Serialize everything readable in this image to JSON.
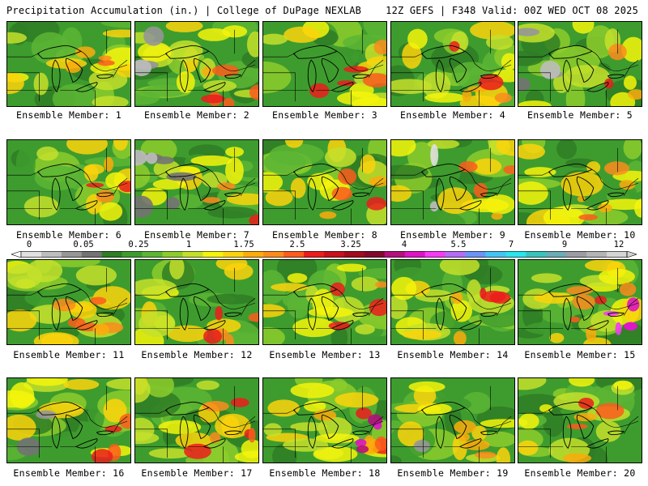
{
  "header": {
    "title": "Precipitation Accumulation (in.) | College of DuPage NEXLAB",
    "run_info": "12Z GEFS | F348 Valid: 00Z WED OCT 08 2025"
  },
  "colorbar": {
    "tick_labels": [
      "0",
      "0.05",
      "0.25",
      "1",
      "1.75",
      "2.5",
      "3.25",
      "4",
      "5.5",
      "7",
      "9",
      "12"
    ],
    "colors": [
      "#e0e0e0",
      "#bdbdbd",
      "#969696",
      "#737373",
      "#2f7d24",
      "#3e9c2e",
      "#5cb534",
      "#8ccc2c",
      "#c4e02c",
      "#f4f40c",
      "#fcd40c",
      "#fcac0c",
      "#fc8c1c",
      "#fc5c1c",
      "#ec1c1c",
      "#c8101c",
      "#a00c1c",
      "#84082c",
      "#b4107c",
      "#dc14c4",
      "#f43cf4",
      "#b46cf4",
      "#6c94f4",
      "#44c4f4",
      "#2ce4ec",
      "#38c4bc",
      "#6cacb4",
      "#9c9ca4",
      "#b4b4b4",
      "#d4d4d4"
    ]
  },
  "members": [
    {
      "label": "Ensemble Member: 1",
      "hot": 0.45,
      "gray": 0.0,
      "magenta": 0.0
    },
    {
      "label": "Ensemble Member: 2",
      "hot": 0.7,
      "gray": 0.25,
      "magenta": 0.0
    },
    {
      "label": "Ensemble Member: 3",
      "hot": 0.6,
      "gray": 0.0,
      "magenta": 0.0
    },
    {
      "label": "Ensemble Member: 4",
      "hot": 0.55,
      "gray": 0.0,
      "magenta": 0.0
    },
    {
      "label": "Ensemble Member: 5",
      "hot": 0.3,
      "gray": 0.35,
      "magenta": 0.0
    },
    {
      "label": "Ensemble Member: 6",
      "hot": 0.4,
      "gray": 0.0,
      "magenta": 0.0
    },
    {
      "label": "Ensemble Member: 7",
      "hot": 0.35,
      "gray": 0.6,
      "magenta": 0.0
    },
    {
      "label": "Ensemble Member: 8",
      "hot": 0.5,
      "gray": 0.0,
      "magenta": 0.0
    },
    {
      "label": "Ensemble Member: 9",
      "hot": 0.45,
      "gray": 0.15,
      "magenta": 0.0
    },
    {
      "label": "Ensemble Member: 10",
      "hot": 0.5,
      "gray": 0.0,
      "magenta": 0.0
    },
    {
      "label": "Ensemble Member: 11",
      "hot": 0.65,
      "gray": 0.0,
      "magenta": 0.0
    },
    {
      "label": "Ensemble Member: 12",
      "hot": 0.5,
      "gray": 0.0,
      "magenta": 0.0
    },
    {
      "label": "Ensemble Member: 13",
      "hot": 0.45,
      "gray": 0.0,
      "magenta": 0.0
    },
    {
      "label": "Ensemble Member: 14",
      "hot": 0.6,
      "gray": 0.0,
      "magenta": 0.0
    },
    {
      "label": "Ensemble Member: 15",
      "hot": 0.7,
      "gray": 0.0,
      "magenta": 0.6
    },
    {
      "label": "Ensemble Member: 16",
      "hot": 0.45,
      "gray": 0.2,
      "magenta": 0.0
    },
    {
      "label": "Ensemble Member: 17",
      "hot": 0.7,
      "gray": 0.0,
      "magenta": 0.0
    },
    {
      "label": "Ensemble Member: 18",
      "hot": 0.65,
      "gray": 0.0,
      "magenta": 0.5
    },
    {
      "label": "Ensemble Member: 19",
      "hot": 0.4,
      "gray": 0.1,
      "magenta": 0.0
    },
    {
      "label": "Ensemble Member: 20",
      "hot": 0.55,
      "gray": 0.0,
      "magenta": 0.0
    }
  ]
}
